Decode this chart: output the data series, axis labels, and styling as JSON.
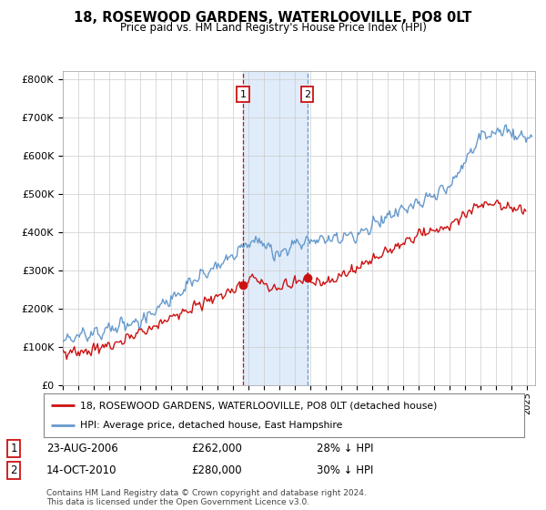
{
  "title": "18, ROSEWOOD GARDENS, WATERLOOVILLE, PO8 0LT",
  "subtitle": "Price paid vs. HM Land Registry's House Price Index (HPI)",
  "ylabel_ticks": [
    "£0",
    "£100K",
    "£200K",
    "£300K",
    "£400K",
    "£500K",
    "£600K",
    "£700K",
    "£800K"
  ],
  "ytick_values": [
    0,
    100000,
    200000,
    300000,
    400000,
    500000,
    600000,
    700000,
    800000
  ],
  "ylim": [
    0,
    820000
  ],
  "xlim_start": 1995.0,
  "xlim_end": 2025.5,
  "hpi_color": "#6699cc",
  "price_color": "#cc1111",
  "sale1_date": 2006.64,
  "sale1_price": 262000,
  "sale2_date": 2010.79,
  "sale2_price": 280000,
  "bg_color": "#ffffff",
  "grid_color": "#cccccc",
  "legend_label1": "18, ROSEWOOD GARDENS, WATERLOOVILLE, PO8 0LT (detached house)",
  "legend_label2": "HPI: Average price, detached house, East Hampshire",
  "note1_label": "1",
  "note1_date": "23-AUG-2006",
  "note1_price": "£262,000",
  "note1_pct": "28% ↓ HPI",
  "note2_label": "2",
  "note2_date": "14-OCT-2010",
  "note2_price": "£280,000",
  "note2_pct": "30% ↓ HPI",
  "footer": "Contains HM Land Registry data © Crown copyright and database right 2024.\nThis data is licensed under the Open Government Licence v3.0."
}
